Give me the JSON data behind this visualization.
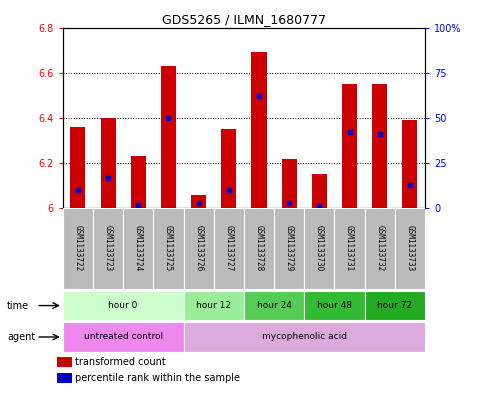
{
  "title": "GDS5265 / ILMN_1680777",
  "samples": [
    "GSM1133722",
    "GSM1133723",
    "GSM1133724",
    "GSM1133725",
    "GSM1133726",
    "GSM1133727",
    "GSM1133728",
    "GSM1133729",
    "GSM1133730",
    "GSM1133731",
    "GSM1133732",
    "GSM1133733"
  ],
  "transformed_count": [
    6.36,
    6.4,
    6.23,
    6.63,
    6.06,
    6.35,
    6.69,
    6.22,
    6.15,
    6.55,
    6.55,
    6.39
  ],
  "percentile_rank": [
    10,
    17,
    2,
    50,
    3,
    10,
    62,
    3,
    1,
    42,
    41,
    13
  ],
  "ylim_left": [
    6.0,
    6.8
  ],
  "ylim_right": [
    0,
    100
  ],
  "yticks_left": [
    6.0,
    6.2,
    6.4,
    6.6,
    6.8
  ],
  "yticks_right": [
    0,
    25,
    50,
    75,
    100
  ],
  "ytick_labels_left": [
    "6",
    "6.2",
    "6.4",
    "6.6",
    "6.8"
  ],
  "ytick_labels_right": [
    "0",
    "25",
    "50",
    "75",
    "100%"
  ],
  "bar_color": "#cc0000",
  "percentile_color": "#0000cc",
  "baseline": 6.0,
  "time_groups": [
    {
      "label": "hour 0",
      "start": 0,
      "end": 4,
      "color": "#ccffcc"
    },
    {
      "label": "hour 12",
      "start": 4,
      "end": 6,
      "color": "#99ee99"
    },
    {
      "label": "hour 24",
      "start": 6,
      "end": 8,
      "color": "#55cc55"
    },
    {
      "label": "hour 48",
      "start": 8,
      "end": 10,
      "color": "#33bb33"
    },
    {
      "label": "hour 72",
      "start": 10,
      "end": 12,
      "color": "#22aa22"
    }
  ],
  "agent_groups": [
    {
      "label": "untreated control",
      "start": 0,
      "end": 4,
      "color": "#ee88ee"
    },
    {
      "label": "mycophenolic acid",
      "start": 4,
      "end": 12,
      "color": "#ddaadd"
    }
  ],
  "legend_items": [
    {
      "label": "transformed count",
      "color": "#cc0000"
    },
    {
      "label": "percentile rank within the sample",
      "color": "#0000cc"
    }
  ],
  "plot_bg_color": "#ffffff",
  "sample_bg_color": "#bbbbbb",
  "bar_width": 0.5
}
